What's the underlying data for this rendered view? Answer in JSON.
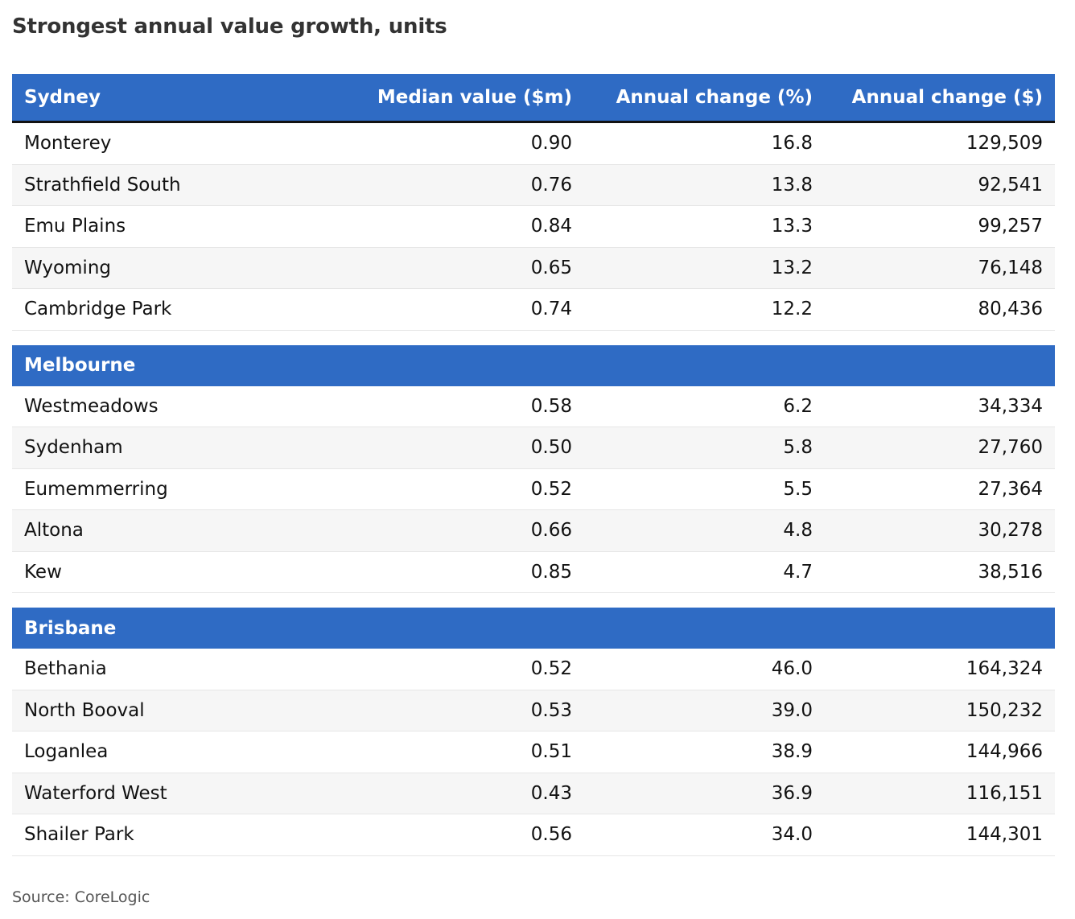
{
  "title": "Strongest annual value growth, units",
  "header": {
    "col1": "Sydney",
    "col2": "Median value ($m)",
    "col3": "Annual change (%)",
    "col4": "Annual change ($)"
  },
  "sydney": [
    {
      "suburb": "Monterey",
      "median": "0.90",
      "pct": "16.8",
      "dollars": "129,509"
    },
    {
      "suburb": "Strathfield South",
      "median": "0.76",
      "pct": "13.8",
      "dollars": "92,541"
    },
    {
      "suburb": "Emu Plains",
      "median": "0.84",
      "pct": "13.3",
      "dollars": "99,257"
    },
    {
      "suburb": "Wyoming",
      "median": "0.65",
      "pct": "13.2",
      "dollars": "76,148"
    },
    {
      "suburb": "Cambridge Park",
      "median": "0.74",
      "pct": "12.2",
      "dollars": "80,436"
    }
  ],
  "melbourne_label": "Melbourne",
  "melbourne": [
    {
      "suburb": "Westmeadows",
      "median": "0.58",
      "pct": "6.2",
      "dollars": "34,334"
    },
    {
      "suburb": "Sydenham",
      "median": "0.50",
      "pct": "5.8",
      "dollars": "27,760"
    },
    {
      "suburb": "Eumemmerring",
      "median": "0.52",
      "pct": "5.5",
      "dollars": "27,364"
    },
    {
      "suburb": "Altona",
      "median": "0.66",
      "pct": "4.8",
      "dollars": "30,278"
    },
    {
      "suburb": "Kew",
      "median": "0.85",
      "pct": "4.7",
      "dollars": "38,516"
    }
  ],
  "brisbane_label": "Brisbane",
  "brisbane": [
    {
      "suburb": "Bethania",
      "median": "0.52",
      "pct": "46.0",
      "dollars": "164,324"
    },
    {
      "suburb": "North Booval",
      "median": "0.53",
      "pct": "39.0",
      "dollars": "150,232"
    },
    {
      "suburb": "Loganlea",
      "median": "0.51",
      "pct": "38.9",
      "dollars": "144,966"
    },
    {
      "suburb": "Waterford West",
      "median": "0.43",
      "pct": "36.9",
      "dollars": "116,151"
    },
    {
      "suburb": "Shailer Park",
      "median": "0.56",
      "pct": "34.0",
      "dollars": "144,301"
    }
  ],
  "source": "Source: CoreLogic"
}
